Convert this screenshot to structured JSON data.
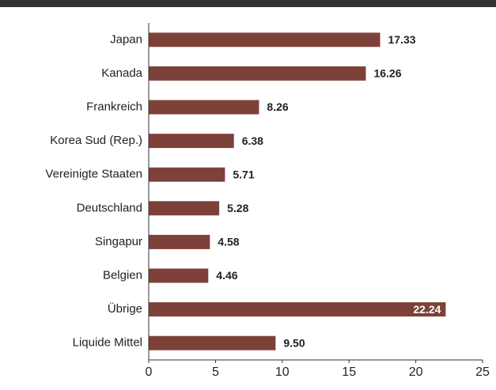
{
  "chart_data": {
    "type": "bar",
    "orientation": "horizontal",
    "categories": [
      "Japan",
      "Kanada",
      "Frankreich",
      "Korea Sud (Rep.)",
      "Vereinigte Staaten",
      "Deutschland",
      "Singapur",
      "Belgien",
      "Übrige",
      "Liquide Mittel"
    ],
    "values": [
      17.33,
      16.26,
      8.26,
      6.38,
      5.71,
      5.28,
      4.58,
      4.46,
      22.24,
      9.5
    ],
    "value_labels": [
      "17.33",
      "16.26",
      "8.26",
      "6.38",
      "5.71",
      "5.28",
      "4.58",
      "4.46",
      "22.24",
      "9.50"
    ],
    "color": "#7d4139",
    "xlim": [
      0,
      25
    ],
    "xticks": [
      0,
      5,
      10,
      15,
      20,
      25
    ],
    "grid": false
  }
}
